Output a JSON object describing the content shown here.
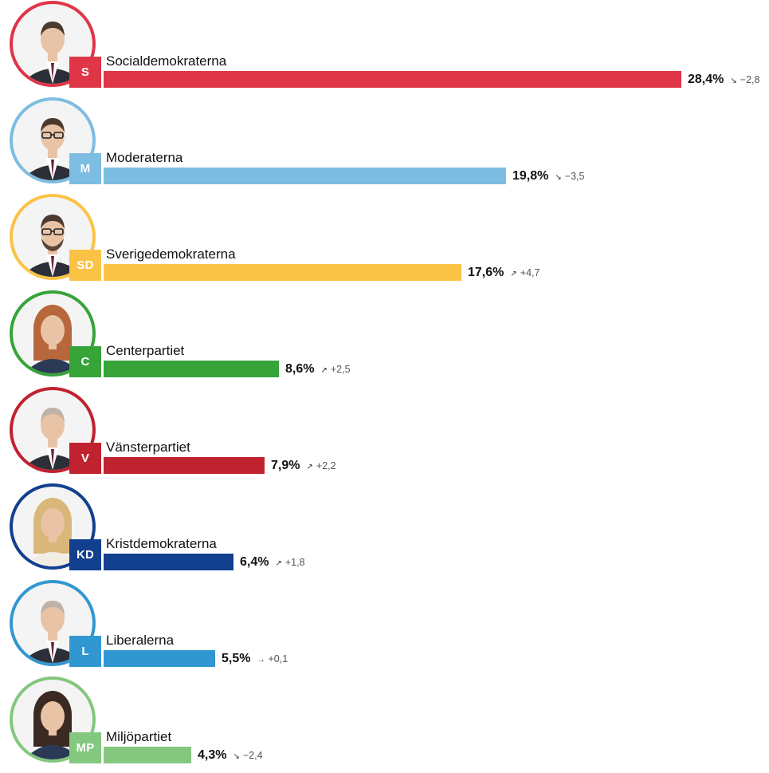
{
  "chart_data": {
    "type": "bar",
    "orientation": "horizontal",
    "unit": "%",
    "xlim": [
      0,
      28.4
    ],
    "series": [
      {
        "party": "Socialdemokraterna",
        "abbr": "S",
        "value": 28.4,
        "value_label": "28,4%",
        "change": -2.8,
        "change_label": "−2,8",
        "trend_icon": "arrow-down-right-icon",
        "trend_glyph": "↘",
        "color": "#e03547",
        "portrait": "man-dark-suit"
      },
      {
        "party": "Moderaterna",
        "abbr": "M",
        "value": 19.8,
        "value_label": "19,8%",
        "change": -3.5,
        "change_label": "−3,5",
        "trend_icon": "arrow-down-right-icon",
        "trend_glyph": "↘",
        "color": "#7dbde1",
        "portrait": "man-glasses"
      },
      {
        "party": "Sverigedemokraterna",
        "abbr": "SD",
        "value": 17.6,
        "value_label": "17,6%",
        "change": 4.7,
        "change_label": "+4,7",
        "trend_icon": "arrow-up-right-icon",
        "trend_glyph": "↗",
        "color": "#fbc346",
        "portrait": "man-glasses-beard"
      },
      {
        "party": "Centerpartiet",
        "abbr": "C",
        "value": 8.6,
        "value_label": "8,6%",
        "change": 2.5,
        "change_label": "+2,5",
        "trend_icon": "arrow-up-right-icon",
        "trend_glyph": "↗",
        "color": "#37a43a",
        "portrait": "woman-red-hair"
      },
      {
        "party": "Vänsterpartiet",
        "abbr": "V",
        "value": 7.9,
        "value_label": "7,9%",
        "change": 2.2,
        "change_label": "+2,2",
        "trend_icon": "arrow-up-right-icon",
        "trend_glyph": "↗",
        "color": "#c0222f",
        "portrait": "man-bald"
      },
      {
        "party": "Kristdemokraterna",
        "abbr": "KD",
        "value": 6.4,
        "value_label": "6,4%",
        "change": 1.8,
        "change_label": "+1,8",
        "trend_icon": "arrow-up-right-icon",
        "trend_glyph": "↗",
        "color": "#123f8e",
        "portrait": "woman-blonde"
      },
      {
        "party": "Liberalerna",
        "abbr": "L",
        "value": 5.5,
        "value_label": "5,5%",
        "change": 0.1,
        "change_label": "+0,1",
        "trend_icon": "arrow-right-icon",
        "trend_glyph": "→",
        "color": "#3197d1",
        "portrait": "man-bald-suit"
      },
      {
        "party": "Miljöpartiet",
        "abbr": "MP",
        "value": 4.3,
        "value_label": "4,3%",
        "change": -2.4,
        "change_label": "−2,4",
        "trend_icon": "arrow-down-right-icon",
        "trend_glyph": "↘",
        "color": "#84c77f",
        "portrait": "woman-dark-hair"
      }
    ]
  }
}
